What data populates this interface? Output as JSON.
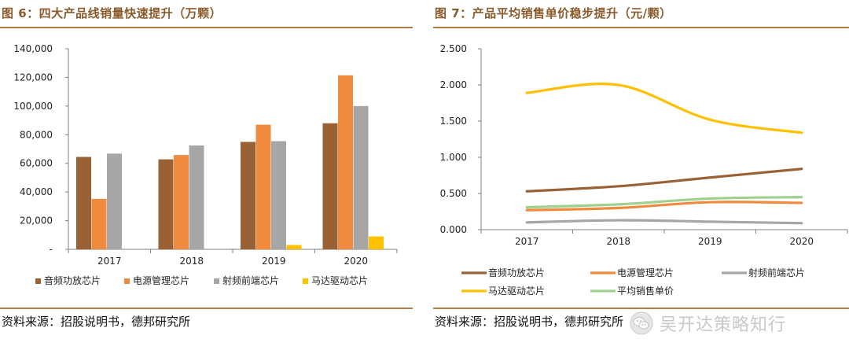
{
  "left": {
    "title": "图 6：四大产品线销量快速提升（万颗）",
    "source": "资料来源：招股说明书，德邦研究所"
  },
  "right": {
    "title": "图 7：产品平均销售单价稳步提升（元/颗）",
    "source": "资料来源：招股说明书，德邦研究所"
  },
  "watermark": {
    "text": "吴开达策略知行",
    "icon": "wechat-icon"
  },
  "chart_data": [
    {
      "type": "bar",
      "title": "",
      "xlabel": "",
      "ylabel": "",
      "categories": [
        "2017",
        "2018",
        "2019",
        "2020"
      ],
      "yticks": [
        "-",
        "20,000",
        "40,000",
        "60,000",
        "80,000",
        "100,000",
        "120,000",
        "140,000"
      ],
      "ylim": [
        0,
        140000
      ],
      "grid": false,
      "legend_position": "bottom",
      "series": [
        {
          "name": "音频功放芯片",
          "color": "#9a6234",
          "values": [
            64500,
            62800,
            75000,
            88000
          ]
        },
        {
          "name": "电源管理芯片",
          "color": "#f08a3c",
          "values": [
            35200,
            65800,
            87000,
            121500
          ]
        },
        {
          "name": "射频前端芯片",
          "color": "#a6a6a6",
          "values": [
            66800,
            72500,
            75500,
            100000
          ]
        },
        {
          "name": "马达驱动芯片",
          "color": "#ffc000",
          "values": [
            0,
            0,
            3000,
            9000
          ]
        }
      ]
    },
    {
      "type": "line",
      "title": "",
      "xlabel": "",
      "ylabel": "",
      "categories": [
        "2017",
        "2018",
        "2019",
        "2020"
      ],
      "yticks": [
        "0.000",
        "0.500",
        "1.000",
        "1.500",
        "2.000",
        "2.500"
      ],
      "ylim": [
        0,
        2.5
      ],
      "grid": false,
      "legend_position": "bottom",
      "series": [
        {
          "name": "音频功放芯片",
          "color": "#9a6234",
          "values": [
            0.53,
            0.6,
            0.72,
            0.84
          ]
        },
        {
          "name": "电源管理芯片",
          "color": "#f08a3c",
          "values": [
            0.27,
            0.3,
            0.38,
            0.37
          ]
        },
        {
          "name": "射频前端芯片",
          "color": "#a6a6a6",
          "values": [
            0.1,
            0.13,
            0.11,
            0.09
          ]
        },
        {
          "name": "马达驱动芯片",
          "color": "#ffc000",
          "values": [
            1.89,
            2.0,
            1.52,
            1.34
          ]
        },
        {
          "name": "平均销售单价",
          "color": "#9fd08f",
          "values": [
            0.31,
            0.35,
            0.43,
            0.45
          ]
        }
      ]
    }
  ]
}
